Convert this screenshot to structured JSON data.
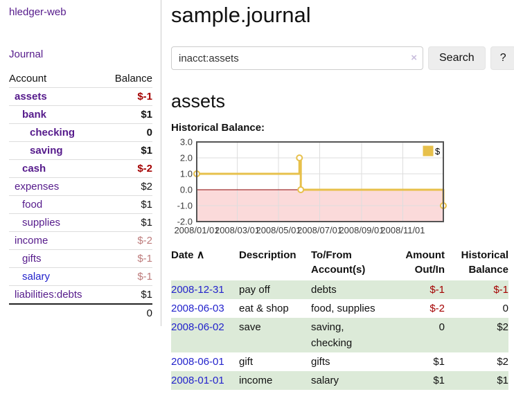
{
  "colors": {
    "purple": "#551a8b",
    "blue": "#2323cc",
    "darkred": "#a40000",
    "rose": "#bd7b7b",
    "rowgreen": "#dcead8"
  },
  "sidebar": {
    "brand": "hledger-web",
    "journal_link": "Journal",
    "accounts": {
      "headers": {
        "account": "Account",
        "balance": "Balance"
      },
      "rows": [
        {
          "name": "assets",
          "indent": 0,
          "bold": true,
          "balance": "$-1",
          "balance_class": "neg-strong"
        },
        {
          "name": "bank",
          "indent": 1,
          "bold": true,
          "balance": "$1",
          "balance_class": ""
        },
        {
          "name": "checking",
          "indent": 2,
          "bold": true,
          "balance": "0",
          "balance_class": ""
        },
        {
          "name": "saving",
          "indent": 2,
          "bold": true,
          "balance": "$1",
          "balance_class": ""
        },
        {
          "name": "cash",
          "indent": 1,
          "bold": true,
          "balance": "$-2",
          "balance_class": "neg-strong"
        },
        {
          "name": "expenses",
          "indent": 0,
          "bold": false,
          "balance": "$2",
          "balance_class": ""
        },
        {
          "name": "food",
          "indent": 1,
          "bold": false,
          "balance": "$1",
          "balance_class": ""
        },
        {
          "name": "supplies",
          "indent": 1,
          "bold": false,
          "balance": "$1",
          "balance_class": ""
        },
        {
          "name": "income",
          "indent": 0,
          "bold": false,
          "balance": "$-2",
          "balance_class": "neg-soft"
        },
        {
          "name": "gifts",
          "indent": 1,
          "bold": false,
          "balance": "$-1",
          "balance_class": "neg-soft"
        },
        {
          "name": "salary",
          "indent": 1,
          "bold": false,
          "blue": true,
          "balance": "$-1",
          "balance_class": "neg-soft"
        },
        {
          "name": "liabilities:debts",
          "indent": 0,
          "bold": false,
          "balance": "$1",
          "balance_class": ""
        }
      ],
      "total": "0"
    }
  },
  "header": {
    "title": "sample.journal"
  },
  "search": {
    "value": "inacct:assets",
    "clear_icon": "×",
    "button_label": "Search",
    "help_label": "?"
  },
  "account_page": {
    "heading": "assets",
    "chart_title": "Historical Balance:"
  },
  "chart_data": {
    "type": "line",
    "title": "Historical Balance:",
    "step": true,
    "x_range": [
      "2008-01-01",
      "2008-12-31"
    ],
    "ylim": [
      -2,
      3
    ],
    "grid": true,
    "legend_position": "top-right",
    "series": [
      {
        "name": "$",
        "points": [
          [
            "2008-01-01",
            1
          ],
          [
            "2008-06-01",
            2
          ],
          [
            "2008-06-03",
            0
          ],
          [
            "2008-12-31",
            -1
          ]
        ]
      }
    ],
    "x_ticks": [
      {
        "date": "2008-01-01",
        "label": "2008/01/01"
      },
      {
        "date": "2008-03-01",
        "label": "2008/03/01"
      },
      {
        "date": "2008-05-01",
        "label": "2008/05/01"
      },
      {
        "date": "2008-07-01",
        "label": "2008/07/01"
      },
      {
        "date": "2008-09-01",
        "label": "2008/09/01"
      },
      {
        "date": "2008-11-01",
        "label": "2008/11/01"
      }
    ],
    "y_ticks": [
      {
        "value": 3,
        "label": "3.0"
      },
      {
        "value": 2,
        "label": "2.0"
      },
      {
        "value": 1,
        "label": "1.0"
      },
      {
        "value": 0,
        "label": "0.0"
      },
      {
        "value": -1,
        "label": "-1.0"
      },
      {
        "value": -2,
        "label": "-2.0"
      }
    ],
    "colors": {
      "line": "#e7c04b",
      "marker_fill": "#ffffff",
      "negative_region": "#fbdada",
      "zero_line": "#8b0000",
      "gridline": "#dddddd",
      "border": "#545454",
      "tick_text": "#3a3a3a"
    }
  },
  "register": {
    "headers": {
      "date": "Date",
      "sort_icon": "∧",
      "description": "Description",
      "tofrom": "To/From Account(s)",
      "amount": "Amount Out/In",
      "balance": "Historical Balance"
    },
    "rows": [
      {
        "date": "2008-12-31",
        "description": "pay off",
        "accounts": "debts",
        "amount": "$-1",
        "amount_negative": true,
        "balance": "$-1",
        "balance_negative": true,
        "green": true
      },
      {
        "date": "2008-06-03",
        "description": "eat & shop",
        "accounts": "food, supplies",
        "amount": "$-2",
        "amount_negative": true,
        "balance": "0",
        "balance_negative": false,
        "green": false
      },
      {
        "date": "2008-06-02",
        "description": "save",
        "accounts": "saving, checking",
        "amount": "0",
        "amount_negative": false,
        "balance": "$2",
        "balance_negative": false,
        "green": true
      },
      {
        "date": "2008-06-01",
        "description": "gift",
        "accounts": "gifts",
        "amount": "$1",
        "amount_negative": false,
        "balance": "$2",
        "balance_negative": false,
        "green": false
      },
      {
        "date": "2008-01-01",
        "description": "income",
        "accounts": "salary",
        "amount": "$1",
        "amount_negative": false,
        "balance": "$1",
        "balance_negative": false,
        "green": true
      }
    ]
  }
}
